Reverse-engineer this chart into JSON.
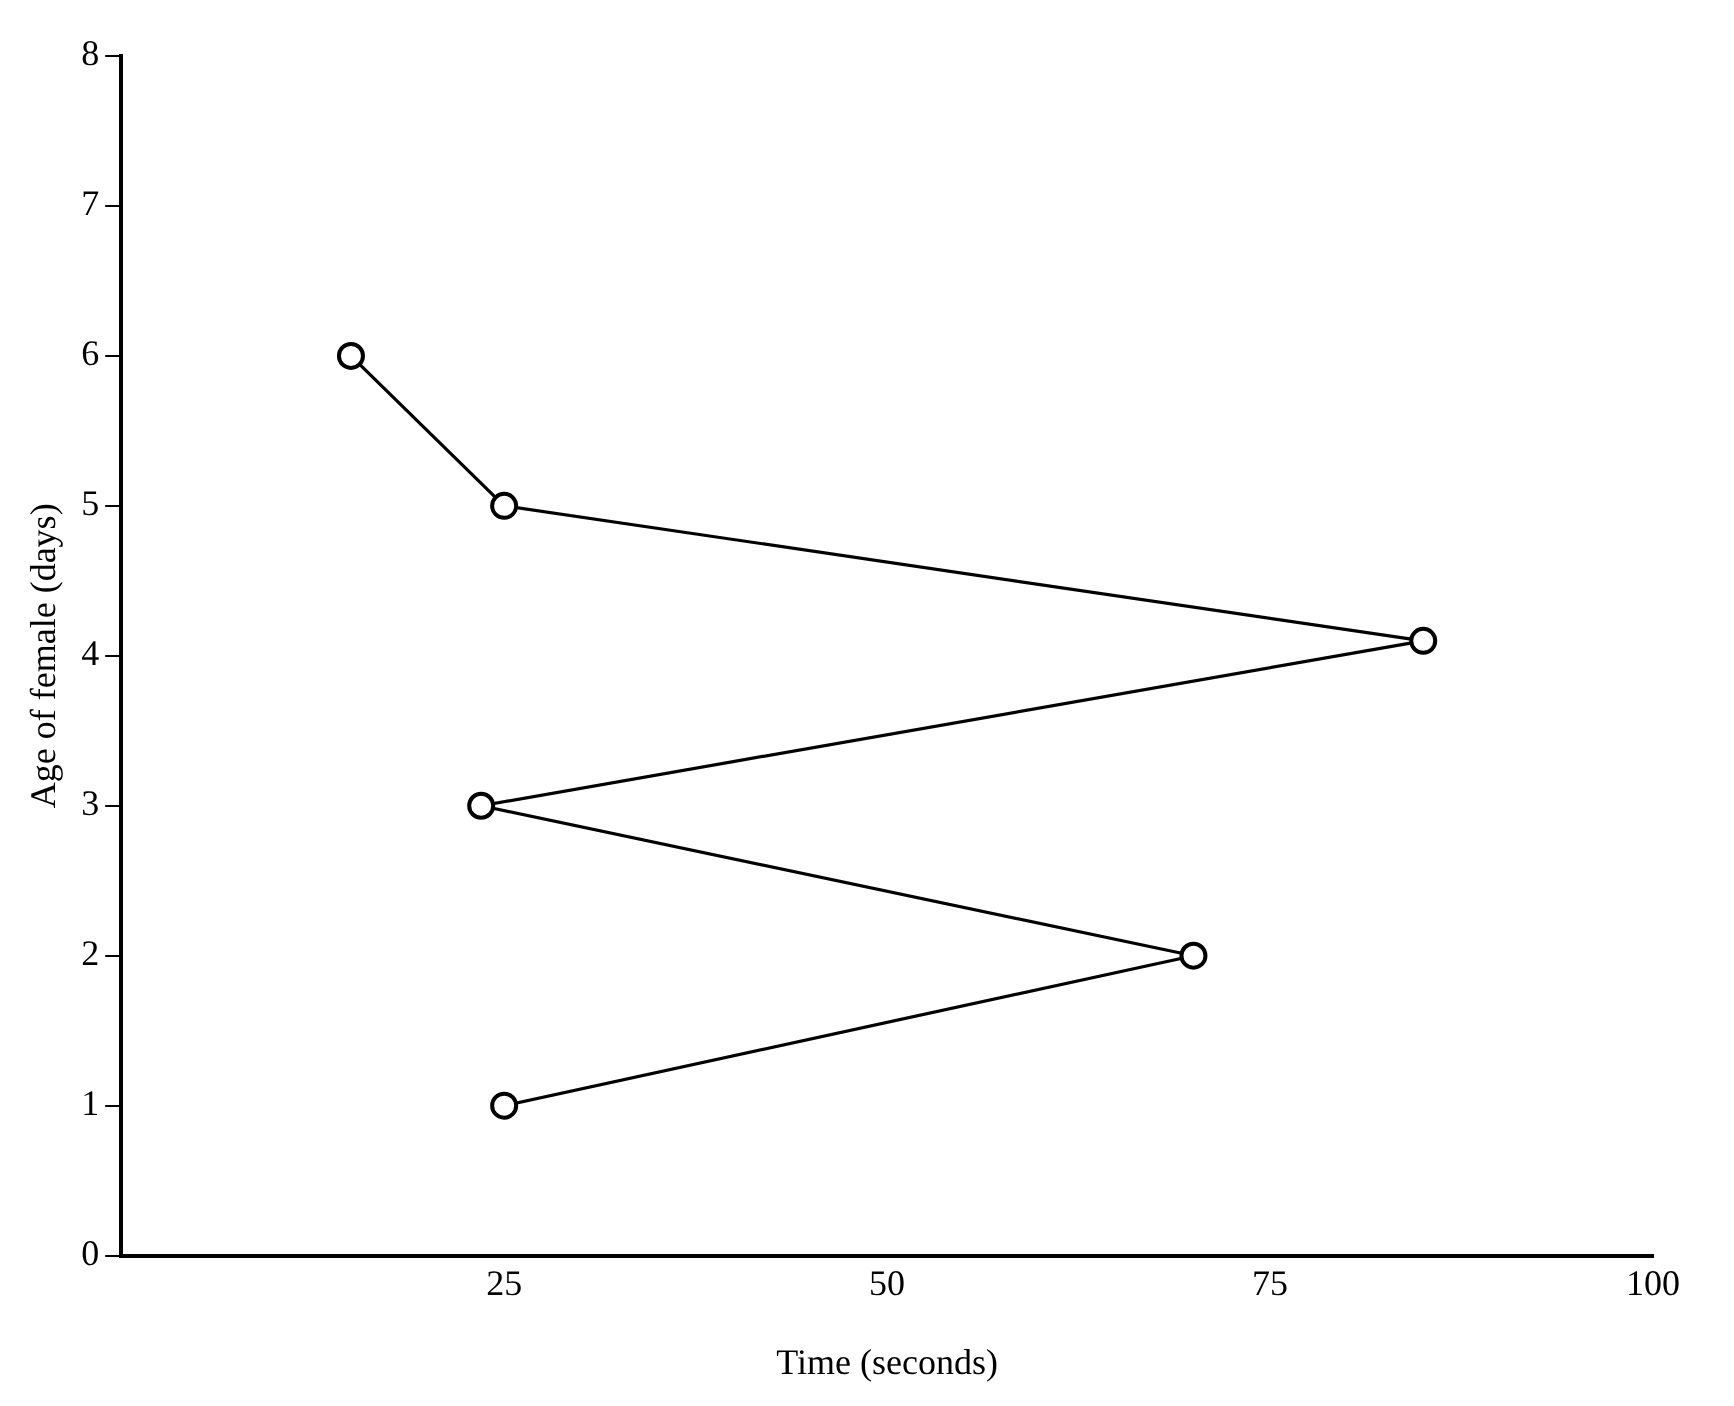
{
  "chart_data": {
    "type": "line",
    "xlabel": "Time (seconds)",
    "ylabel": "Age of female (days)",
    "series": [
      {
        "color": "#000000",
        "x": [
          15,
          25,
          85,
          23.5,
          70,
          25
        ],
        "values": [
          6,
          5,
          4.1,
          3,
          2,
          1
        ]
      }
    ],
    "xlim": [
      0,
      100
    ],
    "xticks": [
      25,
      50,
      75,
      100
    ],
    "ylim": [
      0,
      8
    ],
    "yticks": [
      0,
      1,
      2,
      3,
      4,
      5,
      6,
      7,
      8
    ],
    "grid": false,
    "legend": false,
    "marker": "circle",
    "line_style": "solid"
  }
}
